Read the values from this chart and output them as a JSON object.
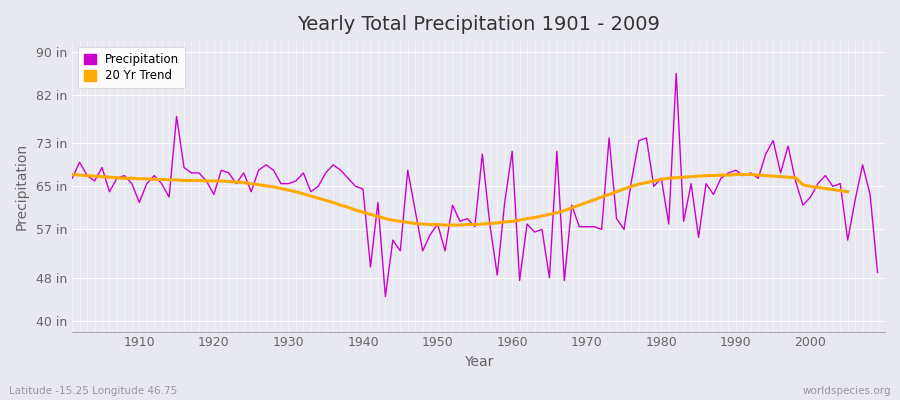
{
  "title": "Yearly Total Precipitation 1901 - 2009",
  "xlabel": "Year",
  "ylabel": "Precipitation",
  "bottom_left": "Latitude -15.25 Longitude 46.75",
  "bottom_right": "worldspecies.org",
  "years": [
    1901,
    1902,
    1903,
    1904,
    1905,
    1906,
    1907,
    1908,
    1909,
    1910,
    1911,
    1912,
    1913,
    1914,
    1915,
    1916,
    1917,
    1918,
    1919,
    1920,
    1921,
    1922,
    1923,
    1924,
    1925,
    1926,
    1927,
    1928,
    1929,
    1930,
    1931,
    1932,
    1933,
    1934,
    1935,
    1936,
    1937,
    1938,
    1939,
    1940,
    1941,
    1942,
    1943,
    1944,
    1945,
    1946,
    1947,
    1948,
    1949,
    1950,
    1951,
    1952,
    1953,
    1954,
    1955,
    1956,
    1957,
    1958,
    1959,
    1960,
    1961,
    1962,
    1963,
    1964,
    1965,
    1966,
    1967,
    1968,
    1969,
    1970,
    1971,
    1972,
    1973,
    1974,
    1975,
    1976,
    1977,
    1978,
    1979,
    1980,
    1981,
    1982,
    1983,
    1984,
    1985,
    1986,
    1987,
    1988,
    1989,
    1990,
    1991,
    1992,
    1993,
    1994,
    1995,
    1996,
    1997,
    1998,
    1999,
    2000,
    2001,
    2002,
    2003,
    2004,
    2005,
    2006,
    2007,
    2008,
    2009
  ],
  "precip": [
    66.5,
    69.5,
    67.0,
    66.0,
    68.5,
    64.0,
    66.5,
    67.0,
    65.5,
    62.0,
    65.5,
    67.0,
    65.5,
    63.0,
    78.0,
    68.5,
    67.5,
    67.5,
    66.0,
    63.5,
    68.0,
    67.5,
    65.5,
    67.5,
    64.0,
    68.0,
    69.0,
    68.0,
    65.5,
    65.5,
    66.0,
    67.5,
    64.0,
    65.0,
    67.5,
    69.0,
    68.0,
    66.5,
    65.0,
    64.5,
    50.0,
    62.0,
    44.5,
    55.0,
    53.0,
    68.0,
    60.5,
    53.0,
    56.0,
    58.0,
    53.0,
    61.5,
    58.5,
    59.0,
    57.5,
    71.0,
    58.0,
    48.5,
    62.0,
    71.5,
    47.5,
    58.0,
    56.5,
    57.0,
    48.0,
    71.5,
    47.5,
    61.5,
    57.5,
    57.5,
    57.5,
    57.0,
    74.0,
    59.0,
    57.0,
    66.0,
    73.5,
    74.0,
    65.0,
    66.5,
    58.0,
    86.0,
    58.5,
    65.5,
    55.5,
    65.5,
    63.5,
    66.5,
    67.5,
    68.0,
    67.0,
    67.5,
    66.5,
    71.0,
    73.5,
    67.5,
    72.5,
    66.0,
    61.5,
    63.0,
    65.5,
    67.0,
    65.0,
    65.5,
    55.0,
    62.5,
    69.0,
    63.5,
    49.0
  ],
  "trend": [
    67.2,
    67.1,
    67.0,
    66.9,
    66.8,
    66.7,
    66.6,
    66.5,
    66.5,
    66.4,
    66.4,
    66.3,
    66.3,
    66.2,
    66.2,
    66.1,
    66.1,
    66.1,
    66.0,
    66.0,
    66.0,
    65.9,
    65.8,
    65.7,
    65.5,
    65.3,
    65.1,
    64.9,
    64.6,
    64.3,
    64.0,
    63.6,
    63.2,
    62.8,
    62.4,
    62.0,
    61.5,
    61.1,
    60.6,
    60.2,
    59.8,
    59.4,
    59.0,
    58.7,
    58.5,
    58.3,
    58.1,
    58.0,
    57.9,
    57.9,
    57.8,
    57.8,
    57.8,
    57.9,
    57.9,
    58.0,
    58.1,
    58.2,
    58.4,
    58.5,
    58.7,
    59.0,
    59.2,
    59.5,
    59.8,
    60.1,
    60.5,
    61.0,
    61.5,
    62.0,
    62.5,
    63.0,
    63.5,
    64.0,
    64.5,
    65.0,
    65.4,
    65.7,
    66.0,
    66.3,
    66.5,
    66.6,
    66.7,
    66.8,
    66.9,
    67.0,
    67.0,
    67.1,
    67.1,
    67.2,
    67.2,
    67.2,
    67.1,
    67.0,
    66.9,
    66.8,
    66.7,
    66.6,
    65.3,
    65.0,
    64.8,
    64.6,
    64.4,
    64.2,
    64.0,
    null,
    null,
    null,
    null
  ],
  "precip_color": "#cc00cc",
  "trend_color": "#ffaa00",
  "bg_color": "#e8e8f0",
  "grid_color": "#ffffff",
  "yticks": [
    40,
    48,
    57,
    65,
    73,
    82,
    90
  ],
  "ytick_labels": [
    "40 in",
    "48 in",
    "57 in",
    "65 in",
    "73 in",
    "82 in",
    "90 in"
  ],
  "ylim": [
    38,
    92
  ],
  "xlim": [
    1901,
    2010
  ],
  "title_fontsize": 14,
  "axis_label_fontsize": 10,
  "tick_fontsize": 9
}
